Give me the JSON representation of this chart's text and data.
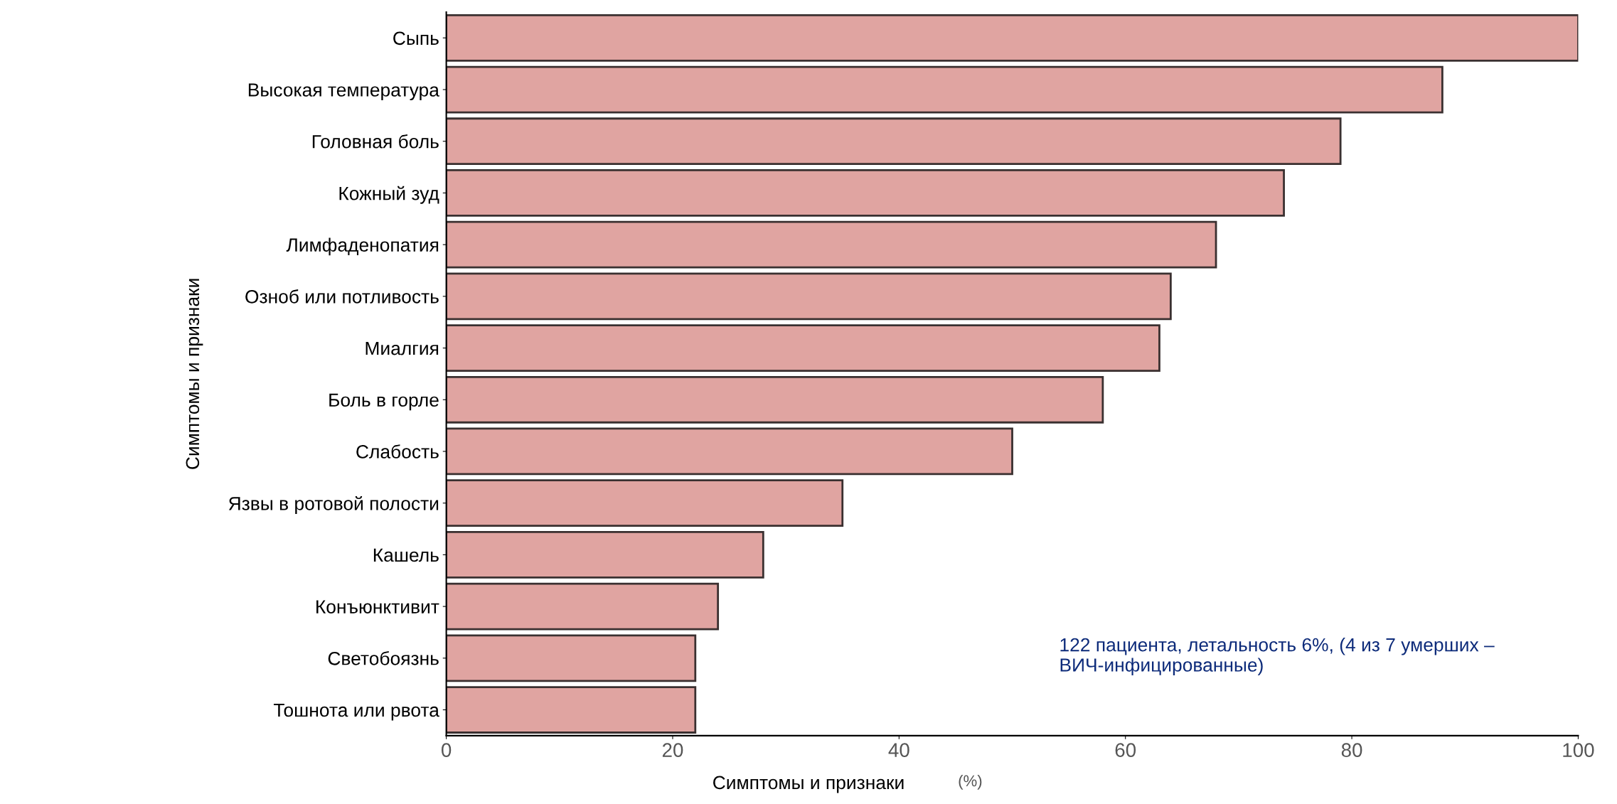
{
  "chart_data": {
    "type": "bar",
    "orientation": "horizontal",
    "categories": [
      "Сыпь",
      "Высокая температура",
      "Головная боль",
      "Кожный зуд",
      "Лимфаденопатия",
      "Озноб или потливость",
      "Миалгия",
      "Боль в горле",
      "Слабость",
      "Язвы в ротовой полости",
      "Кашель",
      "Конъюнктивит",
      "Светобоязнь",
      "Тошнота или рвота"
    ],
    "values": [
      100,
      88,
      79,
      74,
      68,
      64,
      63,
      58,
      50,
      35,
      28,
      24,
      22,
      22
    ],
    "color": "#e0a4a1",
    "xlim": [
      0,
      100
    ],
    "xticks": [
      0,
      20,
      40,
      60,
      80,
      100
    ],
    "xlabel": "Симптомы и признаки",
    "ylabel": "Симптомы и признаки",
    "annotations": [
      "(%)",
      "122 пациента, летальность 6%, (4 из 7 умерших – ВИЧ-инфицированные)"
    ],
    "grid": false,
    "legend": false
  }
}
